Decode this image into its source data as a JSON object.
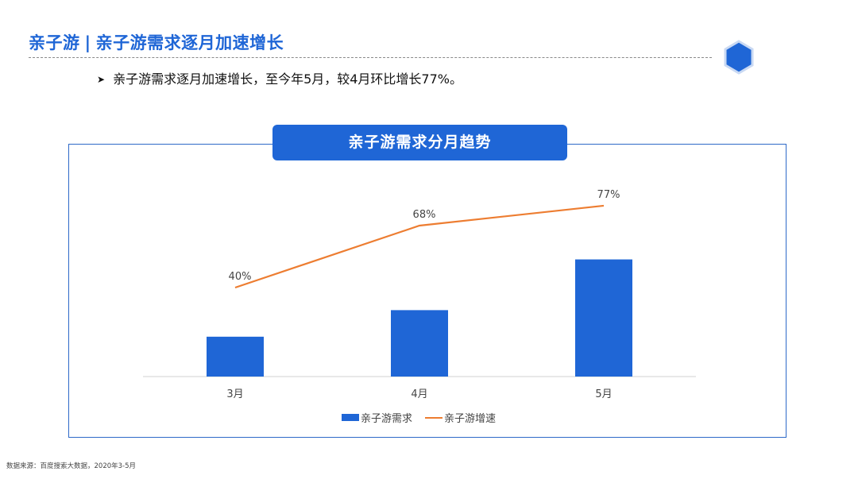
{
  "header": {
    "title_part1": "亲子游",
    "title_sep": "|",
    "title_part2": "亲子游需求逐月加速增长",
    "logo_icon": "hexagon-icon",
    "accent_color": "#1f66d6"
  },
  "bullet": {
    "icon": "arrow-right-icon",
    "text": "亲子游需求逐月加速增长，至今年5月，较4月环比增长77%。"
  },
  "chart_data": {
    "type": "bar",
    "title": "亲子游需求分月趋势",
    "categories": [
      "3月",
      "4月",
      "5月"
    ],
    "series": [
      {
        "name": "亲子游需求",
        "type": "bar",
        "color": "#1f66d6",
        "values": [
          0.33,
          0.55,
          0.97
        ]
      },
      {
        "name": "亲子游增速",
        "type": "line",
        "color": "#ed7d31",
        "values": [
          40,
          68,
          77
        ],
        "labels": [
          "40%",
          "68%",
          "77%"
        ]
      }
    ],
    "grid": false,
    "legend": "bottom"
  },
  "source": "数据来源：百度搜索大数据，2020年3-5月"
}
